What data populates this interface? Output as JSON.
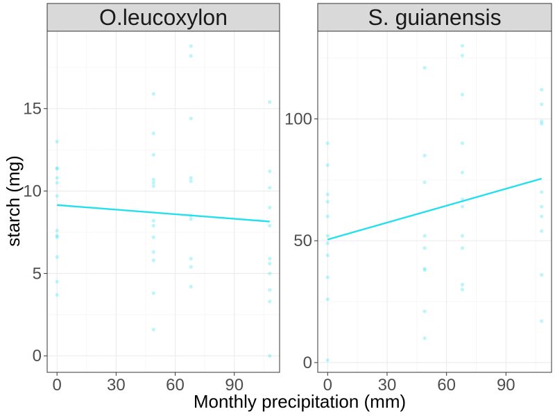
{
  "axes": {
    "xlabel": "Monthly precipitation (mm)",
    "ylabel": "starch (mg)"
  },
  "chart_data": [
    {
      "type": "scatter",
      "panel": "O.leucoxylon",
      "xlim": [
        -5,
        113
      ],
      "ylim": [
        -1,
        19.7
      ],
      "x_ticks": [
        0,
        30,
        60,
        90
      ],
      "y_ticks": [
        0,
        5,
        10,
        15
      ],
      "grid": true,
      "color": "#22e0ee",
      "points": [
        [
          0,
          13.0
        ],
        [
          0,
          11.4
        ],
        [
          0,
          11.35
        ],
        [
          0,
          10.8
        ],
        [
          0,
          10.5
        ],
        [
          0,
          9.7
        ],
        [
          0,
          7.6
        ],
        [
          0,
          7.3
        ],
        [
          0,
          7.2
        ],
        [
          0,
          6.0
        ],
        [
          0,
          4.5
        ],
        [
          0,
          3.7
        ],
        [
          49,
          15.9
        ],
        [
          49,
          13.5
        ],
        [
          49,
          12.2
        ],
        [
          49,
          10.7
        ],
        [
          49,
          10.5
        ],
        [
          49,
          10.3
        ],
        [
          49,
          8.2
        ],
        [
          49,
          7.9
        ],
        [
          49,
          7.2
        ],
        [
          49,
          6.3
        ],
        [
          49,
          5.8
        ],
        [
          49,
          3.8
        ],
        [
          49,
          1.6
        ],
        [
          68,
          18.8
        ],
        [
          68,
          18.2
        ],
        [
          68,
          14.4
        ],
        [
          68,
          10.8
        ],
        [
          68,
          10.6
        ],
        [
          68,
          8.5
        ],
        [
          68,
          8.3
        ],
        [
          68,
          5.9
        ],
        [
          68,
          5.4
        ],
        [
          68,
          4.2
        ],
        [
          108,
          15.4
        ],
        [
          108,
          11.2
        ],
        [
          108,
          10.2
        ],
        [
          108,
          9.0
        ],
        [
          108,
          7.9
        ],
        [
          108,
          5.9
        ],
        [
          108,
          5.6
        ],
        [
          108,
          5.0
        ],
        [
          108,
          4.0
        ],
        [
          108,
          3.3
        ],
        [
          108,
          0.0
        ]
      ],
      "trend": {
        "x": [
          0,
          108
        ],
        "y": [
          9.15,
          8.15
        ]
      }
    },
    {
      "type": "scatter",
      "panel": "S. guianensis",
      "xlim": [
        -5,
        113
      ],
      "ylim": [
        -4,
        136
      ],
      "x_ticks": [
        0,
        30,
        60,
        90
      ],
      "y_ticks": [
        0,
        50,
        100
      ],
      "grid": true,
      "color": "#22e0ee",
      "points": [
        [
          0,
          90
        ],
        [
          0,
          81
        ],
        [
          0,
          69
        ],
        [
          0,
          66
        ],
        [
          0,
          60
        ],
        [
          0,
          52
        ],
        [
          0,
          49
        ],
        [
          0,
          44
        ],
        [
          0,
          35
        ],
        [
          0,
          26
        ],
        [
          0,
          1
        ],
        [
          49,
          121
        ],
        [
          49,
          85
        ],
        [
          49,
          74
        ],
        [
          49,
          52
        ],
        [
          49,
          47
        ],
        [
          49,
          38.5
        ],
        [
          49,
          38
        ],
        [
          49,
          21
        ],
        [
          49,
          10
        ],
        [
          68,
          130
        ],
        [
          68,
          126
        ],
        [
          68,
          110
        ],
        [
          68,
          90
        ],
        [
          68,
          78
        ],
        [
          68,
          67
        ],
        [
          68,
          64
        ],
        [
          68,
          52
        ],
        [
          68,
          47
        ],
        [
          68,
          32
        ],
        [
          68,
          30
        ],
        [
          108,
          112
        ],
        [
          108,
          106
        ],
        [
          108,
          99
        ],
        [
          108,
          98
        ],
        [
          108,
          70
        ],
        [
          108,
          64
        ],
        [
          108,
          60
        ],
        [
          108,
          54
        ],
        [
          108,
          36
        ],
        [
          108,
          17
        ]
      ],
      "trend": {
        "x": [
          0,
          108
        ],
        "y": [
          50.5,
          75.5
        ]
      }
    }
  ]
}
